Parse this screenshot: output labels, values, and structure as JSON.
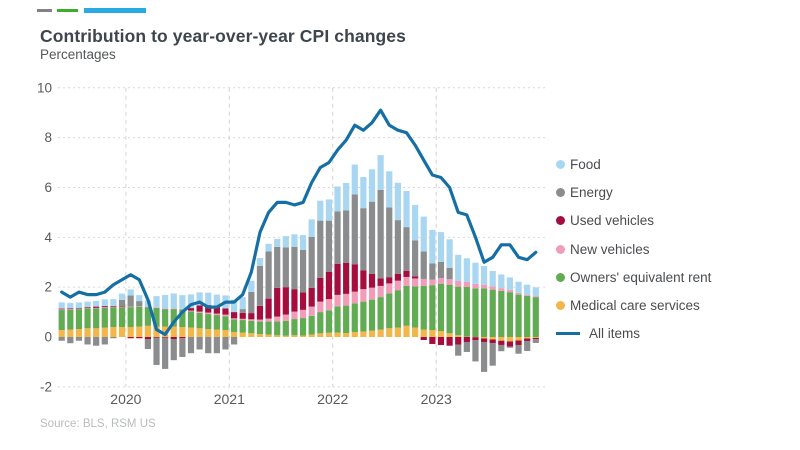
{
  "header": {
    "title": "Contribution to year-over-year CPI changes",
    "subtitle": "Percentages"
  },
  "brand_mark": {
    "dash_colors": [
      "#808285",
      "#3dae2b",
      "#29abe2"
    ]
  },
  "source_note": "Source: BLS, RSM US",
  "legend": {
    "items": [
      {
        "label": "Food",
        "color": "#a9d7f2",
        "swatch": "dot"
      },
      {
        "label": "Energy",
        "color": "#8a8c8e",
        "swatch": "dot"
      },
      {
        "label": "Used vehicles",
        "color": "#a50d3f",
        "swatch": "dot"
      },
      {
        "label": "New vehicles",
        "color": "#f19cb9",
        "swatch": "dot"
      },
      {
        "label": "Owners' equivalent rent",
        "color": "#61ac52",
        "swatch": "dot"
      },
      {
        "label": "Medical care services",
        "color": "#f3b64a",
        "swatch": "dot"
      },
      {
        "label": "All items",
        "color": "#166fa4",
        "swatch": "line"
      }
    ]
  },
  "chart_data": {
    "type": "bar",
    "subtype": "stacked-monthly-bars-with-line-overlay",
    "title": "Contribution to year-over-year CPI changes",
    "xlabel": "",
    "ylabel": "Percentages",
    "ylim": [
      -2,
      10
    ],
    "yticks": [
      10,
      8,
      6,
      4,
      2,
      0,
      "-2"
    ],
    "ytick_labels": [
      "10",
      "8",
      "6",
      "4",
      "2",
      "0",
      "-2"
    ],
    "xticks": [
      "2020",
      "2021",
      "2022",
      "2023"
    ],
    "grid": "dashed",
    "legend_position": "right",
    "stack_order_bottom_to_top": [
      "Medical care services",
      "Owners' equivalent rent",
      "New vehicles",
      "Used vehicles",
      "Energy",
      "Food"
    ],
    "categories": [
      "2019-05",
      "2019-06",
      "2019-07",
      "2019-08",
      "2019-09",
      "2019-10",
      "2019-11",
      "2019-12",
      "2020-01",
      "2020-02",
      "2020-03",
      "2020-04",
      "2020-05",
      "2020-06",
      "2020-07",
      "2020-08",
      "2020-09",
      "2020-10",
      "2020-11",
      "2020-12",
      "2021-01",
      "2021-02",
      "2021-03",
      "2021-04",
      "2021-05",
      "2021-06",
      "2021-07",
      "2021-08",
      "2021-09",
      "2021-10",
      "2021-11",
      "2021-12",
      "2022-01",
      "2022-02",
      "2022-03",
      "2022-04",
      "2022-05",
      "2022-06",
      "2022-07",
      "2022-08",
      "2022-09",
      "2022-10",
      "2022-11",
      "2022-12",
      "2023-01",
      "2023-02",
      "2023-03",
      "2023-04",
      "2023-05",
      "2023-06",
      "2023-07",
      "2023-08",
      "2023-09",
      "2023-10",
      "2023-11",
      "2023-12"
    ],
    "series": [
      {
        "name": "Food",
        "color": "#a9d7f2",
        "values": [
          0.25,
          0.22,
          0.23,
          0.22,
          0.23,
          0.27,
          0.27,
          0.25,
          0.24,
          0.24,
          0.25,
          0.45,
          0.55,
          0.6,
          0.55,
          0.55,
          0.52,
          0.5,
          0.48,
          0.52,
          0.5,
          0.48,
          0.45,
          0.32,
          0.3,
          0.32,
          0.45,
          0.5,
          0.6,
          0.7,
          0.8,
          0.85,
          1.0,
          1.1,
          1.2,
          1.25,
          1.3,
          1.4,
          1.45,
          1.5,
          1.45,
          1.42,
          1.4,
          1.35,
          1.2,
          1.15,
          1.05,
          0.95,
          0.85,
          0.75,
          0.62,
          0.55,
          0.5,
          0.45,
          0.4,
          0.35
        ]
      },
      {
        "name": "Energy",
        "color": "#8a8c8e",
        "values": [
          -0.15,
          -0.25,
          -0.15,
          -0.3,
          -0.35,
          -0.3,
          -0.05,
          0.25,
          0.45,
          0.2,
          -0.4,
          -1.1,
          -1.25,
          -0.85,
          -0.75,
          -0.65,
          -0.5,
          -0.65,
          -0.65,
          -0.5,
          -0.3,
          0.15,
          0.85,
          1.6,
          1.9,
          1.65,
          1.6,
          1.7,
          1.7,
          2.05,
          2.3,
          2.05,
          2.1,
          2.1,
          2.8,
          2.5,
          2.9,
          3.55,
          2.8,
          2.15,
          1.75,
          1.45,
          1.1,
          0.65,
          0.65,
          0.45,
          -0.45,
          -0.4,
          -0.85,
          -1.2,
          -0.9,
          -0.25,
          -0.05,
          -0.35,
          -0.4,
          -0.15
        ]
      },
      {
        "name": "Used vehicles",
        "color": "#a50d3f",
        "values": [
          0.03,
          0.03,
          0.02,
          0.03,
          0.05,
          0.04,
          0.03,
          0.02,
          -0.05,
          -0.05,
          -0.08,
          -0.02,
          -0.03,
          -0.08,
          -0.05,
          0.1,
          0.25,
          0.3,
          0.28,
          0.25,
          0.25,
          0.24,
          0.25,
          0.55,
          0.8,
          1.15,
          1.1,
          0.9,
          0.7,
          0.75,
          0.95,
          1.1,
          1.25,
          1.25,
          1.1,
          0.75,
          0.55,
          0.3,
          0.25,
          0.28,
          0.25,
          0.08,
          -0.12,
          -0.28,
          -0.32,
          -0.35,
          -0.3,
          -0.2,
          -0.12,
          -0.14,
          -0.15,
          -0.17,
          -0.2,
          -0.18,
          -0.1,
          -0.05
        ]
      },
      {
        "name": "New vehicles",
        "color": "#f19cb9",
        "values": [
          0.03,
          0.02,
          0.02,
          0.02,
          0.02,
          0.02,
          0.02,
          0.02,
          0.02,
          0.02,
          0.02,
          0.02,
          0.02,
          0.03,
          0.03,
          0.03,
          0.05,
          0.06,
          0.06,
          0.07,
          0.05,
          0.05,
          0.06,
          0.08,
          0.12,
          0.2,
          0.25,
          0.3,
          0.33,
          0.37,
          0.42,
          0.45,
          0.46,
          0.47,
          0.47,
          0.5,
          0.48,
          0.45,
          0.4,
          0.38,
          0.36,
          0.32,
          0.28,
          0.22,
          0.22,
          0.22,
          0.23,
          0.2,
          0.18,
          0.15,
          0.13,
          0.11,
          0.09,
          0.07,
          0.05,
          0.04
        ]
      },
      {
        "name": "Owners' equivalent rent",
        "color": "#61ac52",
        "values": [
          0.8,
          0.8,
          0.8,
          0.8,
          0.8,
          0.8,
          0.8,
          0.8,
          0.8,
          0.8,
          0.75,
          0.75,
          0.7,
          0.7,
          0.7,
          0.65,
          0.62,
          0.6,
          0.58,
          0.55,
          0.5,
          0.5,
          0.5,
          0.5,
          0.52,
          0.55,
          0.6,
          0.65,
          0.7,
          0.75,
          0.85,
          0.9,
          1.05,
          1.1,
          1.15,
          1.2,
          1.25,
          1.3,
          1.4,
          1.5,
          1.6,
          1.65,
          1.75,
          1.8,
          1.9,
          1.95,
          1.95,
          2.0,
          1.95,
          1.95,
          1.9,
          1.85,
          1.8,
          1.7,
          1.65,
          1.6
        ]
      },
      {
        "name": "Medical care services",
        "color": "#f3b64a",
        "values": [
          0.28,
          0.3,
          0.32,
          0.35,
          0.35,
          0.38,
          0.4,
          0.4,
          0.4,
          0.42,
          0.45,
          0.42,
          0.42,
          0.42,
          0.4,
          0.38,
          0.35,
          0.32,
          0.3,
          0.28,
          0.2,
          0.18,
          0.15,
          0.12,
          0.1,
          0.07,
          0.05,
          0.07,
          0.06,
          0.1,
          0.15,
          0.17,
          0.18,
          0.16,
          0.2,
          0.22,
          0.25,
          0.3,
          0.35,
          0.38,
          0.45,
          0.38,
          0.3,
          0.28,
          0.24,
          0.15,
          0.07,
          0.01,
          -0.01,
          -0.06,
          -0.1,
          -0.15,
          -0.18,
          -0.14,
          -0.06,
          -0.04
        ]
      }
    ],
    "line_series": {
      "name": "All items",
      "color": "#166fa4",
      "values": [
        1.8,
        1.6,
        1.8,
        1.7,
        1.7,
        1.8,
        2.1,
        2.3,
        2.5,
        2.3,
        1.5,
        0.3,
        0.1,
        0.6,
        1.0,
        1.3,
        1.4,
        1.2,
        1.2,
        1.4,
        1.4,
        1.7,
        2.6,
        4.2,
        5.0,
        5.4,
        5.4,
        5.3,
        5.4,
        6.2,
        6.8,
        7.0,
        7.5,
        7.9,
        8.5,
        8.3,
        8.6,
        9.1,
        8.5,
        8.3,
        8.2,
        7.7,
        7.1,
        6.5,
        6.4,
        6.0,
        5.0,
        4.9,
        4.0,
        3.0,
        3.2,
        3.7,
        3.7,
        3.2,
        3.1,
        3.4
      ]
    }
  }
}
